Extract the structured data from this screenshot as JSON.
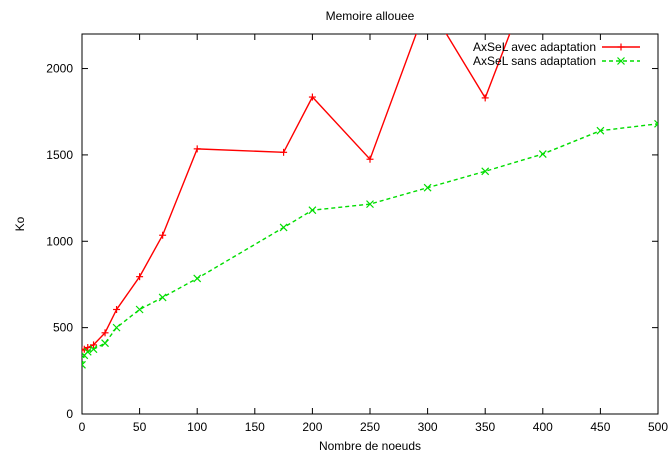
{
  "chart_data": {
    "type": "line",
    "title": "Memoire allouee",
    "xlabel": "Nombre de noeuds",
    "ylabel": "Ko",
    "xlim": [
      0,
      500
    ],
    "ylim": [
      0,
      2200
    ],
    "xticks": [
      0,
      50,
      100,
      150,
      200,
      250,
      300,
      350,
      400,
      450,
      500
    ],
    "yticks": [
      0,
      500,
      1000,
      1500,
      2000
    ],
    "grid": false,
    "legend_position": "top-right",
    "series": [
      {
        "name": "AxSeL avec adaptation",
        "color": "#ff0000",
        "marker": "plus",
        "dash": "solid",
        "x": [
          0,
          2,
          5,
          10,
          20,
          30,
          50,
          70,
          100,
          175,
          200,
          250,
          300,
          350,
          400
        ],
        "y": [
          370,
          375,
          385,
          400,
          470,
          605,
          795,
          1035,
          1535,
          1515,
          1835,
          1475,
          2380,
          1830,
          2700
        ]
      },
      {
        "name": "AxSeL sans adaptation",
        "color": "#00dd00",
        "marker": "cross",
        "dash": "dashed",
        "x": [
          0,
          2,
          5,
          10,
          20,
          30,
          50,
          70,
          100,
          175,
          200,
          250,
          300,
          350,
          400,
          450,
          500
        ],
        "y": [
          285,
          340,
          360,
          375,
          410,
          500,
          605,
          675,
          785,
          1080,
          1180,
          1215,
          1310,
          1405,
          1505,
          1640,
          1680
        ]
      }
    ]
  }
}
